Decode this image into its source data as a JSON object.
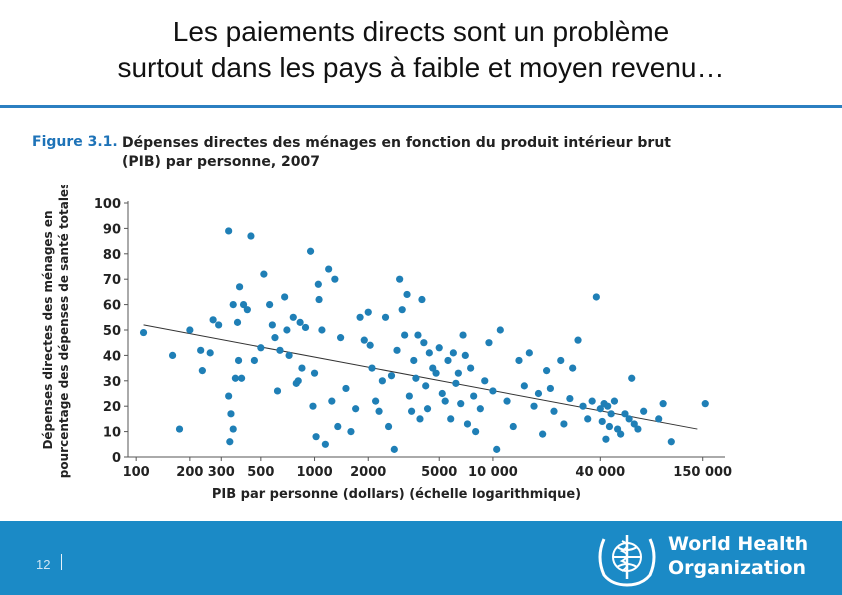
{
  "slide": {
    "title_line1": "Les paiements directs sont un problème",
    "title_line2": "surtout dans les pays à faible et moyen revenu…",
    "page_number": "12",
    "accent_color": "#2b7fc1",
    "footer_color": "#1b8ac6"
  },
  "figure": {
    "label": "Figure 3.1.",
    "caption": "Dépenses directes des ménages en fonction du produit intérieur brut (PIB) par personne, 2007"
  },
  "logo": {
    "line1": "World Health",
    "line2": "Organization",
    "icon": "who-emblem-icon"
  },
  "chart_data": {
    "type": "scatter",
    "title": "",
    "xlabel": "PIB par personne (dollars) (échelle logarithmique)",
    "ylabel_line1": "Dépenses directes des ménages en",
    "ylabel_line2": "pourcentage des dépenses de santé totales",
    "x_scale": "log",
    "xlim": [
      90,
      200000
    ],
    "ylim": [
      0,
      100
    ],
    "x_ticks": [
      {
        "value": 100,
        "label": "100"
      },
      {
        "value": 200,
        "label": "200"
      },
      {
        "value": 300,
        "label": "300"
      },
      {
        "value": 500,
        "label": "500"
      },
      {
        "value": 1000,
        "label": "1000"
      },
      {
        "value": 2000,
        "label": "2000"
      },
      {
        "value": 5000,
        "label": "5000"
      },
      {
        "value": 10000,
        "label": "10 000"
      },
      {
        "value": 40000,
        "label": "40 000"
      },
      {
        "value": 150000,
        "label": "150 000"
      }
    ],
    "y_ticks": [
      0,
      10,
      20,
      30,
      40,
      50,
      60,
      70,
      80,
      90,
      100
    ],
    "grid": false,
    "point_color": "#1f7fb6",
    "trend_line": {
      "x": [
        110,
        140000
      ],
      "y": [
        52,
        11
      ]
    },
    "points": [
      [
        110,
        49
      ],
      [
        160,
        40
      ],
      [
        175,
        11
      ],
      [
        200,
        50
      ],
      [
        230,
        42
      ],
      [
        235,
        34
      ],
      [
        260,
        41
      ],
      [
        270,
        54
      ],
      [
        290,
        52
      ],
      [
        330,
        89
      ],
      [
        330,
        24
      ],
      [
        335,
        6
      ],
      [
        340,
        17
      ],
      [
        350,
        60
      ],
      [
        350,
        11
      ],
      [
        360,
        31
      ],
      [
        370,
        53
      ],
      [
        375,
        38
      ],
      [
        380,
        67
      ],
      [
        390,
        31
      ],
      [
        400,
        60
      ],
      [
        420,
        58
      ],
      [
        440,
        87
      ],
      [
        460,
        38
      ],
      [
        500,
        43
      ],
      [
        520,
        72
      ],
      [
        560,
        60
      ],
      [
        580,
        52
      ],
      [
        600,
        47
      ],
      [
        620,
        26
      ],
      [
        640,
        42
      ],
      [
        680,
        63
      ],
      [
        700,
        50
      ],
      [
        720,
        40
      ],
      [
        760,
        55
      ],
      [
        790,
        29
      ],
      [
        810,
        30
      ],
      [
        830,
        53
      ],
      [
        850,
        35
      ],
      [
        890,
        51
      ],
      [
        950,
        81
      ],
      [
        980,
        20
      ],
      [
        1000,
        33
      ],
      [
        1020,
        8
      ],
      [
        1050,
        68
      ],
      [
        1060,
        62
      ],
      [
        1100,
        50
      ],
      [
        1150,
        5
      ],
      [
        1200,
        74
      ],
      [
        1250,
        22
      ],
      [
        1300,
        70
      ],
      [
        1350,
        12
      ],
      [
        1400,
        47
      ],
      [
        1500,
        27
      ],
      [
        1600,
        10
      ],
      [
        1700,
        19
      ],
      [
        1800,
        55
      ],
      [
        1900,
        46
      ],
      [
        2000,
        57
      ],
      [
        2050,
        44
      ],
      [
        2100,
        35
      ],
      [
        2200,
        22
      ],
      [
        2300,
        18
      ],
      [
        2400,
        30
      ],
      [
        2500,
        55
      ],
      [
        2600,
        12
      ],
      [
        2700,
        32
      ],
      [
        2800,
        3
      ],
      [
        2900,
        42
      ],
      [
        3000,
        70
      ],
      [
        3100,
        58
      ],
      [
        3200,
        48
      ],
      [
        3300,
        64
      ],
      [
        3400,
        24
      ],
      [
        3500,
        18
      ],
      [
        3600,
        38
      ],
      [
        3700,
        31
      ],
      [
        3800,
        48
      ],
      [
        3900,
        15
      ],
      [
        4000,
        62
      ],
      [
        4100,
        45
      ],
      [
        4200,
        28
      ],
      [
        4300,
        19
      ],
      [
        4400,
        41
      ],
      [
        4600,
        35
      ],
      [
        4800,
        33
      ],
      [
        5000,
        43
      ],
      [
        5200,
        25
      ],
      [
        5400,
        22
      ],
      [
        5600,
        38
      ],
      [
        5800,
        15
      ],
      [
        6000,
        41
      ],
      [
        6200,
        29
      ],
      [
        6400,
        33
      ],
      [
        6600,
        21
      ],
      [
        6800,
        48
      ],
      [
        7000,
        40
      ],
      [
        7200,
        13
      ],
      [
        7500,
        35
      ],
      [
        7800,
        24
      ],
      [
        8000,
        10
      ],
      [
        8500,
        19
      ],
      [
        9000,
        30
      ],
      [
        9500,
        45
      ],
      [
        10000,
        26
      ],
      [
        10500,
        3
      ],
      [
        11000,
        50
      ],
      [
        12000,
        22
      ],
      [
        13000,
        12
      ],
      [
        14000,
        38
      ],
      [
        15000,
        28
      ],
      [
        16000,
        41
      ],
      [
        17000,
        20
      ],
      [
        18000,
        25
      ],
      [
        19000,
        9
      ],
      [
        20000,
        34
      ],
      [
        21000,
        27
      ],
      [
        22000,
        18
      ],
      [
        24000,
        38
      ],
      [
        25000,
        13
      ],
      [
        27000,
        23
      ],
      [
        28000,
        35
      ],
      [
        30000,
        46
      ],
      [
        32000,
        20
      ],
      [
        34000,
        15
      ],
      [
        36000,
        22
      ],
      [
        38000,
        63
      ],
      [
        40000,
        19
      ],
      [
        41000,
        14
      ],
      [
        42000,
        21
      ],
      [
        43000,
        7
      ],
      [
        44000,
        20
      ],
      [
        45000,
        12
      ],
      [
        46000,
        17
      ],
      [
        48000,
        22
      ],
      [
        50000,
        11
      ],
      [
        52000,
        9
      ],
      [
        55000,
        17
      ],
      [
        58000,
        15
      ],
      [
        60000,
        31
      ],
      [
        62000,
        13
      ],
      [
        65000,
        11
      ],
      [
        70000,
        18
      ],
      [
        85000,
        15
      ],
      [
        90000,
        21
      ],
      [
        100000,
        6
      ],
      [
        155000,
        21
      ]
    ]
  }
}
